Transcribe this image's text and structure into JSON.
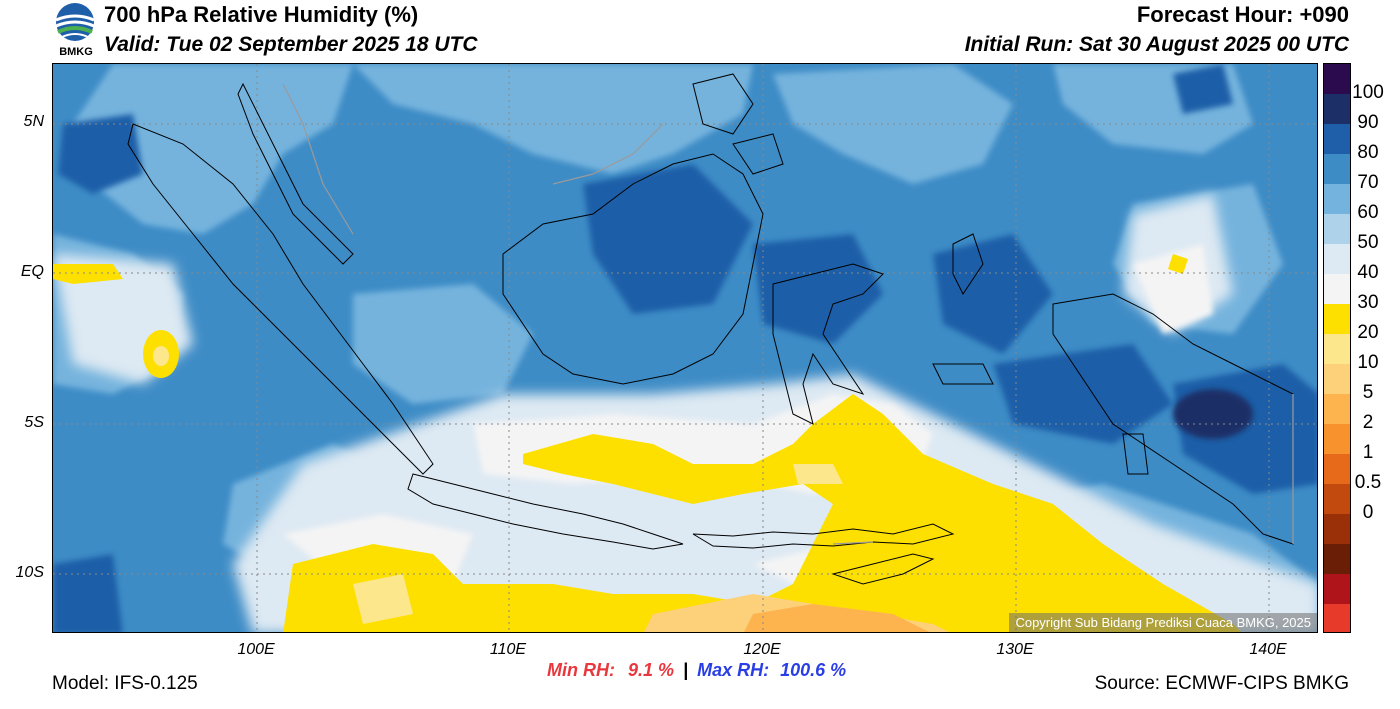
{
  "header": {
    "title": "700 hPa Relative Humidity (%)",
    "valid": "Valid: Tue 02 September 2025 18 UTC",
    "forecast_hour": "Forecast Hour: +090",
    "initial_run": "Initial Run: Sat 30 August 2025 00 UTC",
    "logo_text": "BMKG"
  },
  "map": {
    "lat_labels": [
      "5N",
      "EQ",
      "5S",
      "10S"
    ],
    "lon_labels": [
      "100E",
      "110E",
      "120E",
      "130E",
      "140E"
    ],
    "copyright": "Copyright Sub Bidang Prediksi Cuaca BMKG, 2025"
  },
  "colorbar": {
    "labels": [
      "100",
      "90",
      "80",
      "70",
      "60",
      "50",
      "40",
      "30",
      "20",
      "10",
      "5",
      "2",
      "1",
      "0.5",
      "0"
    ],
    "colors": [
      "#2b0a4d",
      "#1c2f66",
      "#1f5ea8",
      "#3e8cc6",
      "#74b3dd",
      "#aed2ea",
      "#dde9f3",
      "#f4f4f4",
      "#fde000",
      "#fde78c",
      "#fdd07a",
      "#fdb34e",
      "#f7922c",
      "#e66a1a",
      "#c24a0e",
      "#9a3008",
      "#6b1e06",
      "#b0141b",
      "#e83a2b"
    ]
  },
  "stats": {
    "min_label": "Min RH:",
    "min_value": "9.1 %",
    "separator": "|",
    "max_label": "Max RH:",
    "max_value": "100.6 %"
  },
  "footer": {
    "model": "Model: IFS-0.125",
    "source": "Source: ECMWF-CIPS BMKG"
  }
}
